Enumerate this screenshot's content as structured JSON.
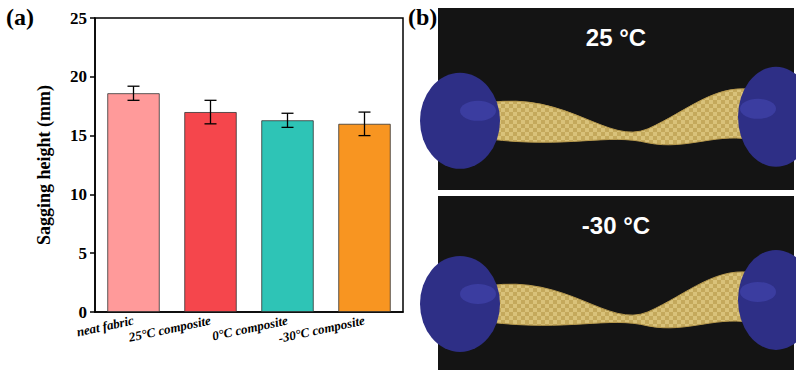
{
  "chart_data": {
    "type": "bar",
    "panel_label": "(a)",
    "y_label": "Sagging height (mm)",
    "categories": [
      "neat fabric",
      "25°C composite",
      "0°C composite",
      "-30°C composite"
    ],
    "values": [
      18.6,
      17.0,
      16.3,
      16.0
    ],
    "errors": [
      0.6,
      1.0,
      0.6,
      1.0
    ],
    "colors": [
      "#ff9a9a",
      "#f5464c",
      "#2ec4b6",
      "#f89521"
    ],
    "ylim": [
      0,
      25
    ],
    "yticks": [
      0,
      5,
      10,
      15,
      20,
      25
    ],
    "grid": false
  },
  "photo_panel": {
    "panel_label": "(b)",
    "photos": [
      {
        "label": "25 °C"
      },
      {
        "label": "-30 °C"
      }
    ]
  }
}
